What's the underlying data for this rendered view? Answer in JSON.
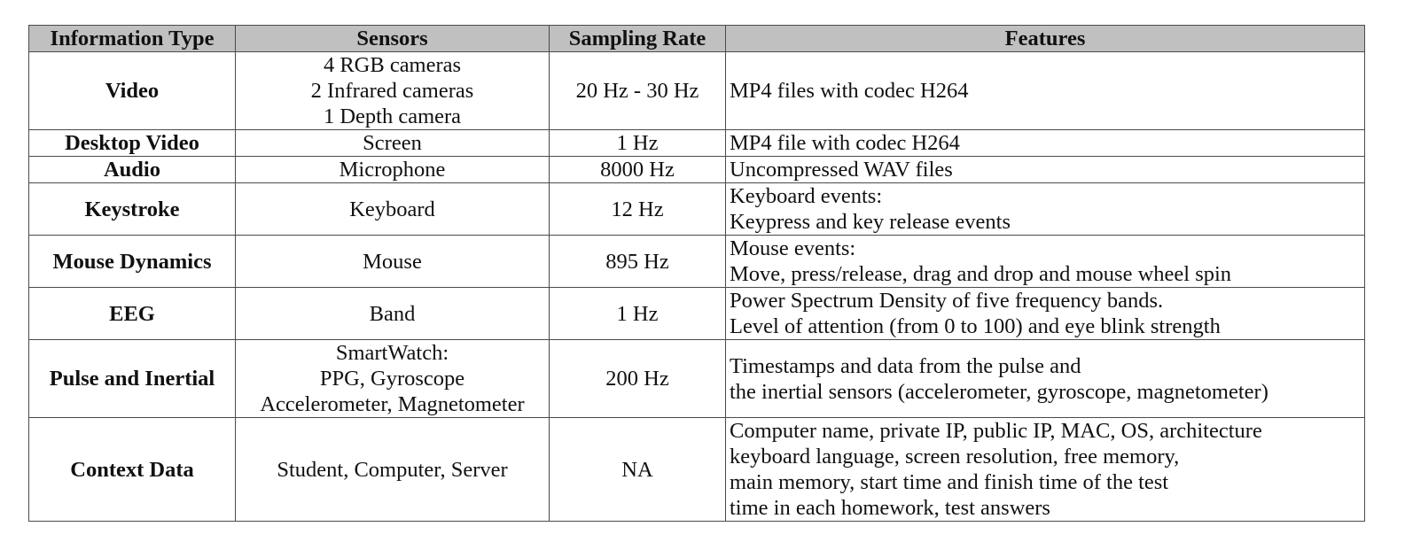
{
  "table": {
    "headers": [
      "Information Type",
      "Sensors",
      "Sampling Rate",
      "Features"
    ],
    "rows": [
      {
        "type": "Video",
        "sensors": [
          "4 RGB cameras",
          "2 Infrared cameras",
          "1 Depth camera"
        ],
        "rate": "20 Hz - 30 Hz",
        "features": [
          "MP4 files with codec H264"
        ]
      },
      {
        "type": "Desktop Video",
        "sensors": [
          "Screen"
        ],
        "rate": "1 Hz",
        "features": [
          "MP4 file with codec H264"
        ]
      },
      {
        "type": "Audio",
        "sensors": [
          "Microphone"
        ],
        "rate": "8000 Hz",
        "features": [
          "Uncompressed WAV files"
        ]
      },
      {
        "type": "Keystroke",
        "sensors": [
          "Keyboard"
        ],
        "rate": "12 Hz",
        "features": [
          "Keyboard events:",
          "Keypress and key release events"
        ]
      },
      {
        "type": "Mouse Dynamics",
        "sensors": [
          "Mouse"
        ],
        "rate": "895 Hz",
        "features": [
          "Mouse events:",
          "Move, press/release, drag and drop and mouse wheel spin"
        ]
      },
      {
        "type": "EEG",
        "sensors": [
          "Band"
        ],
        "rate": "1 Hz",
        "features": [
          "Power Spectrum Density of five frequency bands.",
          "Level of attention (from 0 to 100) and eye blink strength"
        ]
      },
      {
        "type": "Pulse and Inertial",
        "sensors": [
          "SmartWatch:",
          "PPG, Gyroscope",
          "Accelerometer, Magnetometer"
        ],
        "rate": "200 Hz",
        "features": [
          "Timestamps and data from the pulse and",
          "the inertial sensors (accelerometer, gyroscope, magnetometer)"
        ]
      },
      {
        "type": "Context Data",
        "sensors": [
          "Student, Computer, Server"
        ],
        "rate": "NA",
        "features": [
          "Computer name, private IP, public IP, MAC, OS, architecture",
          "keyboard language, screen resolution, free memory,",
          "main memory, start time and finish time of the test",
          "time in each homework, test answers"
        ]
      }
    ]
  }
}
